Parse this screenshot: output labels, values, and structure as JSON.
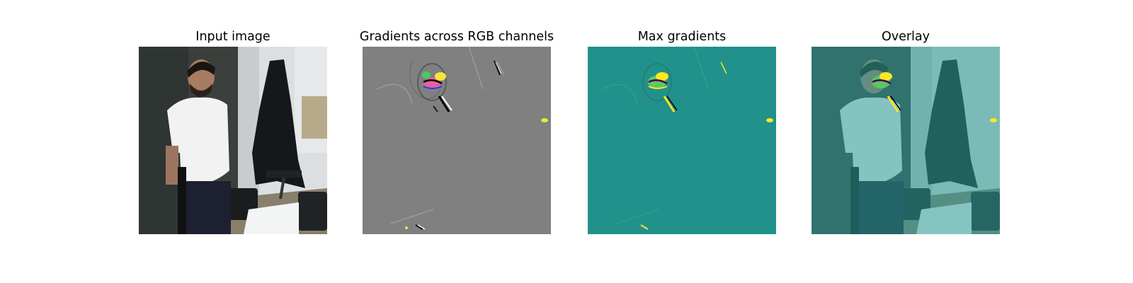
{
  "figure": {
    "panels": [
      {
        "title": "Input image"
      },
      {
        "title": "Gradients across RGB channels"
      },
      {
        "title": "Max gradients"
      },
      {
        "title": "Overlay"
      }
    ]
  },
  "colors": {
    "gradient_background": "#808080",
    "max_gradient_background": "#21918c",
    "overlay_tint": "#2a9d97",
    "hot": "#fde725",
    "mid": "#5ec962"
  }
}
